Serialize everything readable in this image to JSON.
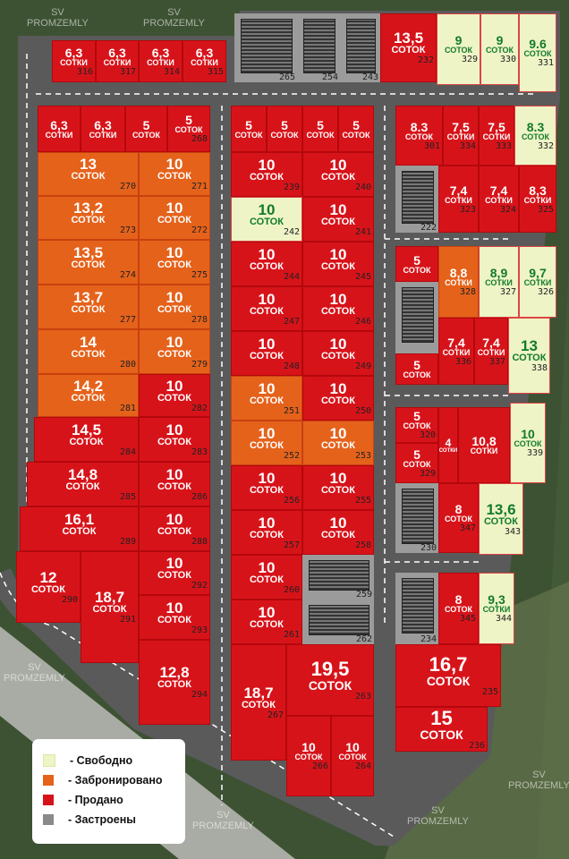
{
  "watermark": {
    "line1": "SV",
    "line2": "PROMZEMLY"
  },
  "status_colors": {
    "free": "#eef4c6",
    "reserved": "#e5621b",
    "sold": "#d7131a",
    "built": "#9b9b9b"
  },
  "legend": [
    {
      "label": "- Свободно",
      "status": "free"
    },
    {
      "label": "- Забронировано",
      "status": "reserved"
    },
    {
      "label": "- Продано",
      "status": "sold"
    },
    {
      "label": "- Застроены",
      "status": "built"
    }
  ],
  "plots": [
    {
      "n": "316",
      "a": "6,3",
      "u": "сотки",
      "s": "sold"
    },
    {
      "n": "317",
      "a": "6,3",
      "u": "сотки",
      "s": "sold"
    },
    {
      "n": "314",
      "a": "6,3",
      "u": "сотки",
      "s": "sold"
    },
    {
      "n": "315",
      "a": "6,3",
      "u": "сотки",
      "s": "sold"
    },
    {
      "n": "265",
      "a": "",
      "u": "",
      "s": "built"
    },
    {
      "n": "254",
      "a": "",
      "u": "",
      "s": "built"
    },
    {
      "n": "243",
      "a": "",
      "u": "",
      "s": "built"
    },
    {
      "n": "232",
      "a": "13,5",
      "u": "соток",
      "s": "sold"
    },
    {
      "n": "329",
      "a": "9",
      "u": "соток",
      "s": "free"
    },
    {
      "n": "330",
      "a": "9",
      "u": "соток",
      "s": "free"
    },
    {
      "n": "331",
      "a": "9.6",
      "u": "соток",
      "s": "free"
    },
    {
      "n": "",
      "a": "6,3",
      "u": "сотки",
      "s": "sold"
    },
    {
      "n": "",
      "a": "6,3",
      "u": "сотки",
      "s": "sold"
    },
    {
      "n": "",
      "a": "5",
      "u": "соток",
      "s": "sold"
    },
    {
      "n": "268",
      "a": "5",
      "u": "соток",
      "s": "sold"
    },
    {
      "n": "270",
      "a": "13",
      "u": "соток",
      "s": "reserved"
    },
    {
      "n": "271",
      "a": "10",
      "u": "соток",
      "s": "reserved"
    },
    {
      "n": "273",
      "a": "13,2",
      "u": "соток",
      "s": "reserved"
    },
    {
      "n": "272",
      "a": "10",
      "u": "соток",
      "s": "reserved"
    },
    {
      "n": "274",
      "a": "13,5",
      "u": "соток",
      "s": "reserved"
    },
    {
      "n": "275",
      "a": "10",
      "u": "соток",
      "s": "reserved"
    },
    {
      "n": "277",
      "a": "13,7",
      "u": "соток",
      "s": "reserved"
    },
    {
      "n": "278",
      "a": "10",
      "u": "соток",
      "s": "reserved"
    },
    {
      "n": "280",
      "a": "14",
      "u": "соток",
      "s": "reserved"
    },
    {
      "n": "279",
      "a": "10",
      "u": "соток",
      "s": "reserved"
    },
    {
      "n": "281",
      "a": "14,2",
      "u": "соток",
      "s": "reserved"
    },
    {
      "n": "282",
      "a": "10",
      "u": "соток",
      "s": "sold"
    },
    {
      "n": "284",
      "a": "14,5",
      "u": "соток",
      "s": "sold"
    },
    {
      "n": "283",
      "a": "10",
      "u": "соток",
      "s": "sold"
    },
    {
      "n": "285",
      "a": "14,8",
      "u": "соток",
      "s": "sold"
    },
    {
      "n": "286",
      "a": "10",
      "u": "соток",
      "s": "sold"
    },
    {
      "n": "289",
      "a": "16,1",
      "u": "соток",
      "s": "sold"
    },
    {
      "n": "288",
      "a": "10",
      "u": "соток",
      "s": "sold"
    },
    {
      "n": "290",
      "a": "12",
      "u": "соток",
      "s": "sold"
    },
    {
      "n": "291",
      "a": "18,7",
      "u": "соток",
      "s": "sold"
    },
    {
      "n": "292",
      "a": "10",
      "u": "соток",
      "s": "sold"
    },
    {
      "n": "293",
      "a": "10",
      "u": "соток",
      "s": "sold"
    },
    {
      "n": "294",
      "a": "12,8",
      "u": "соток",
      "s": "sold"
    },
    {
      "n": "",
      "a": "5",
      "u": "соток",
      "s": "sold"
    },
    {
      "n": "",
      "a": "5",
      "u": "соток",
      "s": "sold"
    },
    {
      "n": "",
      "a": "5",
      "u": "соток",
      "s": "sold"
    },
    {
      "n": "",
      "a": "5",
      "u": "соток",
      "s": "sold"
    },
    {
      "n": "239",
      "a": "10",
      "u": "соток",
      "s": "sold"
    },
    {
      "n": "240",
      "a": "10",
      "u": "соток",
      "s": "sold"
    },
    {
      "n": "242",
      "a": "10",
      "u": "соток",
      "s": "free"
    },
    {
      "n": "241",
      "a": "10",
      "u": "соток",
      "s": "sold"
    },
    {
      "n": "244",
      "a": "10",
      "u": "соток",
      "s": "sold"
    },
    {
      "n": "245",
      "a": "10",
      "u": "соток",
      "s": "sold"
    },
    {
      "n": "247",
      "a": "10",
      "u": "соток",
      "s": "sold"
    },
    {
      "n": "246",
      "a": "10",
      "u": "соток",
      "s": "sold"
    },
    {
      "n": "248",
      "a": "10",
      "u": "соток",
      "s": "sold"
    },
    {
      "n": "249",
      "a": "10",
      "u": "соток",
      "s": "sold"
    },
    {
      "n": "251",
      "a": "10",
      "u": "соток",
      "s": "reserved"
    },
    {
      "n": "250",
      "a": "10",
      "u": "соток",
      "s": "sold"
    },
    {
      "n": "252",
      "a": "10",
      "u": "соток",
      "s": "reserved"
    },
    {
      "n": "253",
      "a": "10",
      "u": "соток",
      "s": "reserved"
    },
    {
      "n": "256",
      "a": "10",
      "u": "соток",
      "s": "sold"
    },
    {
      "n": "255",
      "a": "10",
      "u": "соток",
      "s": "sold"
    },
    {
      "n": "257",
      "a": "10",
      "u": "соток",
      "s": "sold"
    },
    {
      "n": "258",
      "a": "10",
      "u": "соток",
      "s": "sold"
    },
    {
      "n": "260",
      "a": "10",
      "u": "соток",
      "s": "sold"
    },
    {
      "n": "259",
      "a": "",
      "u": "",
      "s": "built"
    },
    {
      "n": "261",
      "a": "10",
      "u": "соток",
      "s": "sold"
    },
    {
      "n": "262",
      "a": "",
      "u": "",
      "s": "built"
    },
    {
      "n": "267",
      "a": "18,7",
      "u": "соток",
      "s": "sold"
    },
    {
      "n": "263",
      "a": "19,5",
      "u": "соток",
      "s": "sold"
    },
    {
      "n": "266",
      "a": "10",
      "u": "соток",
      "s": "sold"
    },
    {
      "n": "264",
      "a": "10",
      "u": "соток",
      "s": "sold"
    },
    {
      "n": "301",
      "a": "8.3",
      "u": "соток",
      "s": "sold"
    },
    {
      "n": "334",
      "a": "7,5",
      "u": "сотки",
      "s": "sold"
    },
    {
      "n": "333",
      "a": "7,5",
      "u": "сотки",
      "s": "sold"
    },
    {
      "n": "332",
      "a": "8.3",
      "u": "соток",
      "s": "free"
    },
    {
      "n": "222",
      "a": "",
      "u": "",
      "s": "built"
    },
    {
      "n": "323",
      "a": "7,4",
      "u": "сотки",
      "s": "sold"
    },
    {
      "n": "324",
      "a": "7,4",
      "u": "сотки",
      "s": "sold"
    },
    {
      "n": "325",
      "a": "8,3",
      "u": "сотки",
      "s": "sold"
    },
    {
      "n": "",
      "a": "5",
      "u": "соток",
      "s": "sold"
    },
    {
      "n": "",
      "a": "",
      "u": "",
      "s": "built"
    },
    {
      "n": "328",
      "a": "8,8",
      "u": "сотки",
      "s": "reserved"
    },
    {
      "n": "327",
      "a": "8,9",
      "u": "сотки",
      "s": "free"
    },
    {
      "n": "326",
      "a": "9,7",
      "u": "сотки",
      "s": "free"
    },
    {
      "n": "",
      "a": "5",
      "u": "соток",
      "s": "sold"
    },
    {
      "n": "336",
      "a": "7,4",
      "u": "сотки",
      "s": "sold"
    },
    {
      "n": "337",
      "a": "7,4",
      "u": "сотки",
      "s": "sold"
    },
    {
      "n": "338",
      "a": "13",
      "u": "соток",
      "s": "free"
    },
    {
      "n": "320",
      "a": "5",
      "u": "соток",
      "s": "sold"
    },
    {
      "n": "329",
      "a": "5",
      "u": "соток",
      "s": "sold"
    },
    {
      "n": "",
      "a": "4",
      "u": "сотки",
      "s": "sold"
    },
    {
      "n": "",
      "a": "10,8",
      "u": "сотки",
      "s": "sold"
    },
    {
      "n": "339",
      "a": "10",
      "u": "соток",
      "s": "free"
    },
    {
      "n": "230",
      "a": "",
      "u": "",
      "s": "built"
    },
    {
      "n": "347",
      "a": "8",
      "u": "соток",
      "s": "sold"
    },
    {
      "n": "343",
      "a": "13,6",
      "u": "соток",
      "s": "free"
    },
    {
      "n": "234",
      "a": "",
      "u": "",
      "s": "built"
    },
    {
      "n": "345",
      "a": "8",
      "u": "соток",
      "s": "sold"
    },
    {
      "n": "344",
      "a": "9,3",
      "u": "сотки",
      "s": "free"
    },
    {
      "n": "235",
      "a": "16,7",
      "u": "соток",
      "s": "sold"
    },
    {
      "n": "236",
      "a": "15",
      "u": "соток",
      "s": "sold"
    }
  ]
}
